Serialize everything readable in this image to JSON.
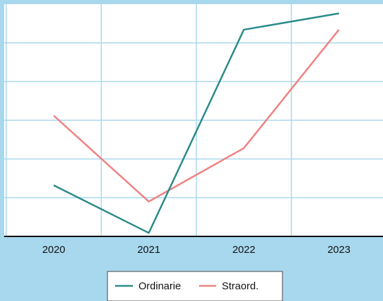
{
  "chart_data": {
    "type": "line",
    "title": "",
    "xlabel": "",
    "ylabel": "",
    "categories": [
      "2020",
      "2021",
      "2022",
      "2023"
    ],
    "ylim": [
      0,
      100
    ],
    "grid": true,
    "legend_position": "bottom",
    "series": [
      {
        "name": "Ordinarie",
        "color": "#2a8a8a",
        "values": [
          22,
          1.5,
          89,
          96
        ]
      },
      {
        "name": "Straord.",
        "color": "#f08080",
        "values": [
          52,
          15,
          38,
          89
        ]
      }
    ]
  },
  "colors": {
    "background": "#a8d8ee",
    "plot_background": "#ffffff",
    "grid": "#a8d8ee",
    "axis": "#000000"
  }
}
